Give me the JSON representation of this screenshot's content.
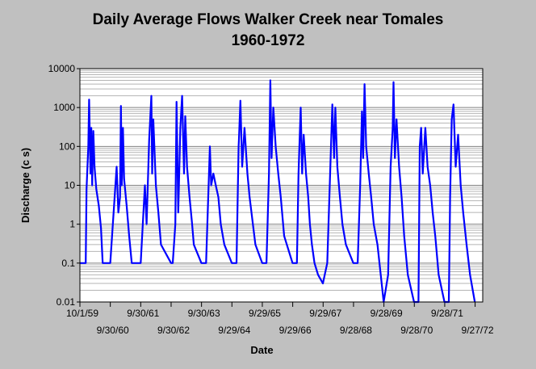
{
  "chart_data": {
    "type": "line",
    "title": "Daily Average Flows Walker Creek near Tomales",
    "subtitle": "1960-1972",
    "xlabel": "Date",
    "ylabel": "Discharge (c s)",
    "yscale": "log",
    "ylim": [
      0.01,
      10000
    ],
    "xlim": [
      "1959-10-01",
      "1972-12-31"
    ],
    "y_ticks": [
      "10000",
      "1000",
      "100",
      "10",
      "1",
      "0.1",
      "0.01"
    ],
    "x_ticks_upper": [
      "10/1/59",
      "9/30/61",
      "9/30/63",
      "9/29/65",
      "9/29/67",
      "9/28/69",
      "9/28/71"
    ],
    "x_ticks_lower": [
      "9/30/60",
      "9/30/62",
      "9/29/64",
      "9/29/66",
      "9/28/68",
      "9/28/70",
      "9/27/72"
    ],
    "grid": true,
    "line_color": "#0000ff",
    "series": [
      {
        "x": [
          "1959-10-01",
          "1959-12-10",
          "1959-12-20",
          "1960-01-10",
          "1960-01-20",
          "1960-02-05",
          "1960-02-15",
          "1960-02-25",
          "1960-03-10",
          "1960-03-25",
          "1960-04-15",
          "1960-05-15",
          "1960-06-10",
          "1960-07-01",
          "1960-09-30",
          "1960-12-15",
          "1961-01-05",
          "1961-01-25",
          "1961-02-05",
          "1961-02-15",
          "1961-03-01",
          "1961-03-15",
          "1961-04-15",
          "1961-05-15",
          "1961-06-15",
          "1961-09-30",
          "1961-11-20",
          "1961-12-10",
          "1962-01-10",
          "1962-02-05",
          "1962-02-15",
          "1962-03-01",
          "1962-04-01",
          "1962-05-01",
          "1962-06-01",
          "1962-09-30",
          "1962-10-20",
          "1962-11-20",
          "1962-12-05",
          "1962-12-25",
          "1963-01-20",
          "1963-02-10",
          "1963-03-05",
          "1963-03-20",
          "1963-04-10",
          "1963-05-10",
          "1963-06-10",
          "1963-07-01",
          "1963-09-30",
          "1963-11-25",
          "1964-01-10",
          "1964-01-25",
          "1964-02-20",
          "1964-03-20",
          "1964-04-20",
          "1964-05-20",
          "1964-07-01",
          "1964-09-29",
          "1964-11-25",
          "1964-12-20",
          "1964-12-24",
          "1965-01-10",
          "1965-02-01",
          "1965-03-01",
          "1965-04-05",
          "1965-05-01",
          "1965-06-10",
          "1965-07-10",
          "1965-09-29",
          "1965-11-20",
          "1965-12-20",
          "1966-01-05",
          "1966-01-20",
          "1966-02-10",
          "1966-03-10",
          "1966-04-10",
          "1966-05-10",
          "1966-06-20",
          "1966-09-29",
          "1966-11-20",
          "1966-12-10",
          "1967-01-05",
          "1967-01-22",
          "1967-02-10",
          "1967-03-10",
          "1967-04-05",
          "1967-04-25",
          "1967-05-20",
          "1967-06-20",
          "1967-08-01",
          "1967-09-29",
          "1967-11-20",
          "1967-12-20",
          "1968-01-20",
          "1968-02-10",
          "1968-02-25",
          "1968-03-20",
          "1968-04-20",
          "1968-05-20",
          "1968-07-01",
          "1968-09-28",
          "1968-11-20",
          "1968-12-20",
          "1969-01-10",
          "1969-01-25",
          "1969-02-10",
          "1969-03-01",
          "1969-04-01",
          "1969-05-01",
          "1969-06-01",
          "1969-07-15",
          "1969-09-28",
          "1969-11-20",
          "1969-12-20",
          "1970-01-15",
          "1970-01-24",
          "1970-02-10",
          "1970-03-01",
          "1970-04-01",
          "1970-05-01",
          "1970-06-01",
          "1970-07-15",
          "1970-09-28",
          "1970-11-20",
          "1970-12-05",
          "1970-12-22",
          "1971-01-10",
          "1971-02-10",
          "1971-03-10",
          "1971-04-10",
          "1971-05-10",
          "1971-06-10",
          "1971-07-20",
          "1971-09-28",
          "1971-11-20",
          "1971-12-05",
          "1971-12-25",
          "1972-01-15",
          "1972-02-10",
          "1972-03-10",
          "1972-04-10",
          "1972-05-10",
          "1972-06-20",
          "1972-08-01",
          "1972-09-27"
        ],
        "y": [
          0.1,
          0.1,
          8,
          100,
          1600,
          20,
          300,
          10,
          250,
          30,
          8,
          3,
          0.8,
          0.1,
          0.1,
          30,
          2,
          5,
          1100,
          10,
          300,
          15,
          3,
          0.5,
          0.1,
          0.1,
          10,
          1,
          150,
          2000,
          20,
          500,
          10,
          2,
          0.3,
          0.1,
          0.1,
          1,
          1400,
          2,
          300,
          2000,
          20,
          600,
          30,
          5,
          1,
          0.3,
          0.1,
          0.1,
          100,
          10,
          20,
          10,
          5,
          1,
          0.3,
          0.1,
          0.1,
          100,
          150,
          1500,
          30,
          300,
          20,
          5,
          1,
          0.3,
          0.1,
          0.1,
          20,
          5000,
          50,
          1000,
          100,
          20,
          5,
          0.5,
          0.1,
          0.1,
          20,
          1000,
          20,
          200,
          20,
          5,
          1,
          0.3,
          0.1,
          0.05,
          0.03,
          0.1,
          10,
          1200,
          50,
          1000,
          30,
          5,
          1,
          0.3,
          0.1,
          0.1,
          10,
          800,
          50,
          4000,
          100,
          20,
          5,
          1,
          0.3,
          0.01,
          0.05,
          30,
          300,
          4500,
          50,
          500,
          30,
          5,
          0.5,
          0.05,
          0.01,
          0.01,
          100,
          300,
          20,
          300,
          30,
          10,
          2,
          0.5,
          0.05,
          0.01,
          0.01,
          5,
          500,
          1200,
          30,
          200,
          10,
          2,
          0.3,
          0.05,
          0.01
        ]
      }
    ]
  }
}
